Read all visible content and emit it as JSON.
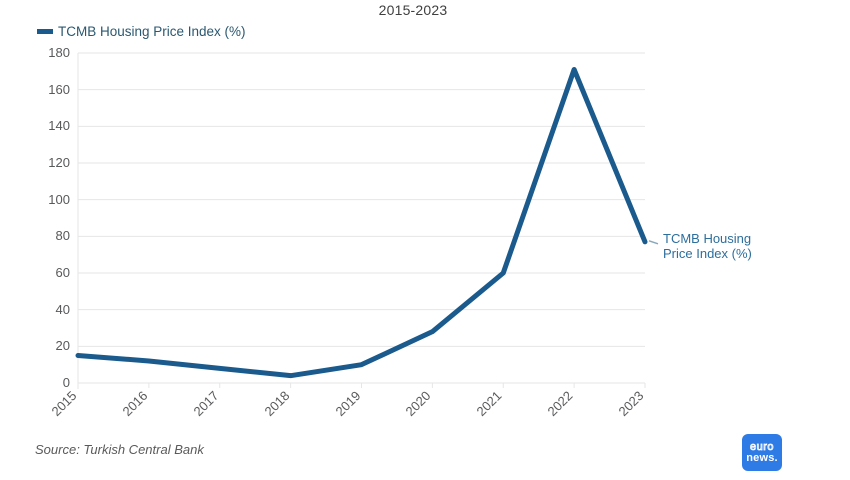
{
  "title": "2015-2023",
  "legend": {
    "label": "TCMB Housing Price Index (%)"
  },
  "end_label": "TCMB Housing Price Index (%)",
  "source": "Source: Turkish Central Bank",
  "logo": {
    "line1": "euro",
    "line2": "news."
  },
  "colors": {
    "line": "#1a5a8c",
    "legend_text": "#2b5870",
    "end_label_text": "#2c6e9c",
    "grid": "#e6e6e6",
    "axis_text": "#58595b",
    "title_text": "#3f3f3f",
    "logo_bg": "#2f7be6",
    "connector": "#8aa8bc"
  },
  "chart_data": {
    "type": "line",
    "title": "2015-2023",
    "x": [
      2015,
      2016,
      2017,
      2018,
      2019,
      2020,
      2021,
      2022,
      2023
    ],
    "series": [
      {
        "name": "TCMB Housing Price Index (%)",
        "values": [
          15,
          12,
          8,
          4,
          10,
          28,
          60,
          171,
          77
        ]
      }
    ],
    "xlabel": "",
    "ylabel": "",
    "ylim": [
      0,
      180
    ],
    "yticks": [
      0,
      20,
      40,
      60,
      80,
      100,
      120,
      140,
      160,
      180
    ],
    "grid": true,
    "legend_position": "top-left"
  }
}
